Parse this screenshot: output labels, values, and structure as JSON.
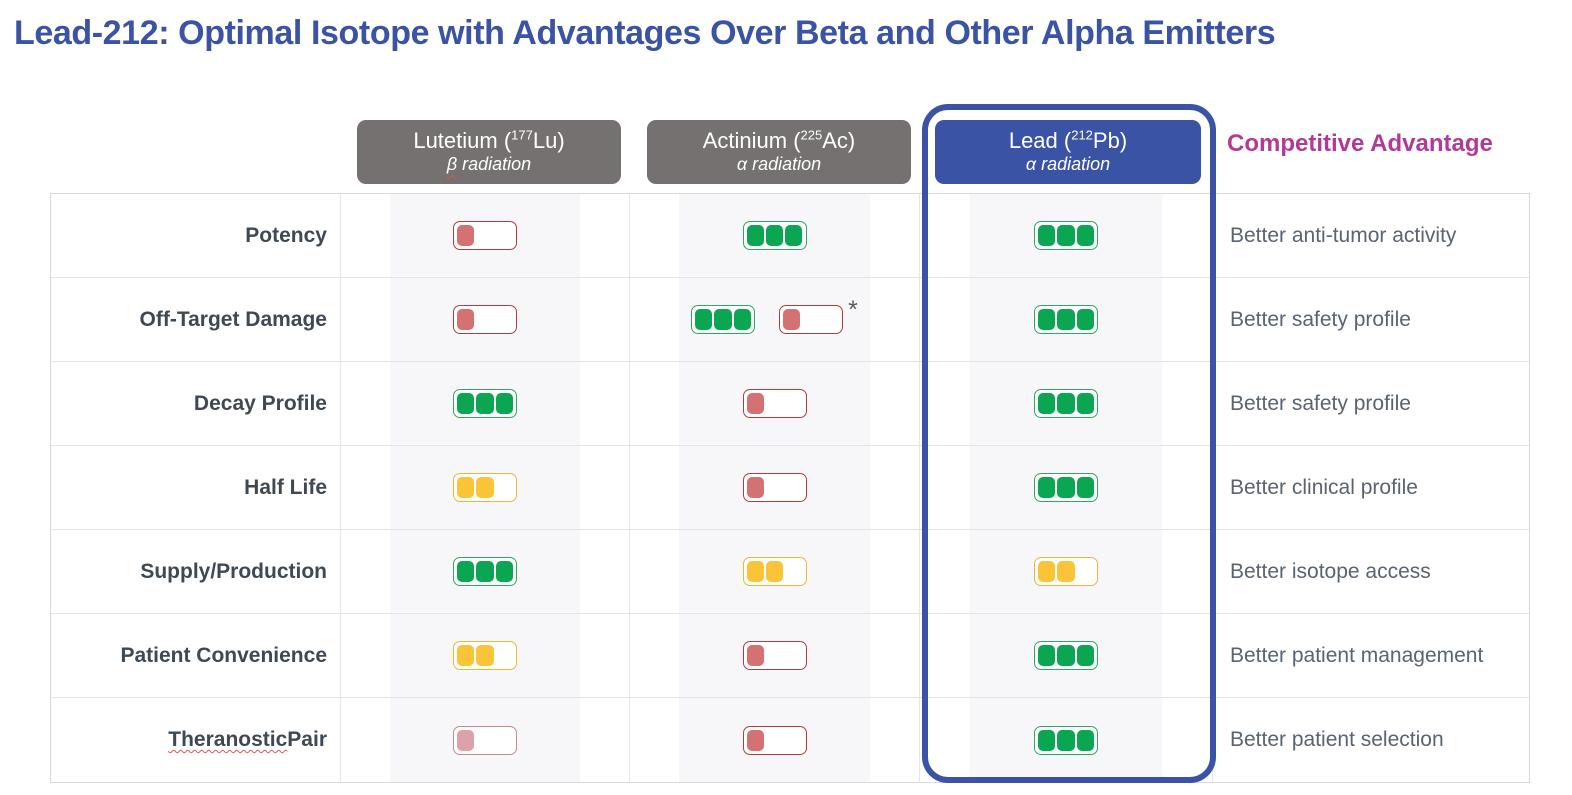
{
  "chart_data": {
    "type": "table",
    "title": "Lead-212: Optimal Isotope with Advantages Over Beta and Other Alpha Emitters",
    "advantage_header": "Competitive Advantage",
    "rating_scale_max": 3,
    "rating_legend": "filled blocks out of 3; green = favorable, yellow = moderate, red = unfavorable",
    "columns": [
      {
        "key": "lutetium",
        "display": "Lutetium (",
        "mass_number": "177",
        "element_close": "Lu)",
        "radiation": "β radiation",
        "radiation_wavy_prefix": "β",
        "theme": "gray",
        "highlighted": false
      },
      {
        "key": "actinium",
        "display": "Actinium (",
        "mass_number": "225",
        "element_close": "Ac)",
        "radiation": "α radiation",
        "theme": "gray",
        "highlighted": false
      },
      {
        "key": "lead",
        "display": "Lead (",
        "mass_number": "212",
        "element_close": "Pb)",
        "radiation": "α radiation",
        "theme": "blue",
        "highlighted": true
      }
    ],
    "rows": [
      {
        "category": "Potency",
        "cells": {
          "lutetium": [
            {
              "filled": 1,
              "color": "red"
            }
          ],
          "actinium": [
            {
              "filled": 3,
              "color": "green"
            }
          ],
          "lead": [
            {
              "filled": 3,
              "color": "green"
            }
          ]
        },
        "advantage": "Better anti-tumor activity"
      },
      {
        "category": "Off-Target Damage",
        "cells": {
          "lutetium": [
            {
              "filled": 1,
              "color": "red"
            }
          ],
          "actinium": [
            {
              "filled": 3,
              "color": "green"
            },
            {
              "filled": 1,
              "color": "red",
              "note": "*"
            }
          ],
          "lead": [
            {
              "filled": 3,
              "color": "green"
            }
          ]
        },
        "advantage": "Better safety profile"
      },
      {
        "category": "Decay Profile",
        "cells": {
          "lutetium": [
            {
              "filled": 3,
              "color": "green"
            }
          ],
          "actinium": [
            {
              "filled": 1,
              "color": "red"
            }
          ],
          "lead": [
            {
              "filled": 3,
              "color": "green"
            }
          ]
        },
        "advantage": "Better safety profile"
      },
      {
        "category": "Half Life",
        "cells": {
          "lutetium": [
            {
              "filled": 2,
              "color": "yellow"
            }
          ],
          "actinium": [
            {
              "filled": 1,
              "color": "red"
            }
          ],
          "lead": [
            {
              "filled": 3,
              "color": "green"
            }
          ]
        },
        "advantage": "Better clinical profile"
      },
      {
        "category": "Supply/Production",
        "cells": {
          "lutetium": [
            {
              "filled": 3,
              "color": "green"
            }
          ],
          "actinium": [
            {
              "filled": 2,
              "color": "yellow"
            }
          ],
          "lead": [
            {
              "filled": 2,
              "color": "yellow"
            }
          ]
        },
        "advantage": "Better isotope access"
      },
      {
        "category": "Patient Convenience",
        "cells": {
          "lutetium": [
            {
              "filled": 2,
              "color": "yellow"
            }
          ],
          "actinium": [
            {
              "filled": 1,
              "color": "red"
            }
          ],
          "lead": [
            {
              "filled": 3,
              "color": "green"
            }
          ]
        },
        "advantage": "Better patient management"
      },
      {
        "category": "Theranostic Pair",
        "category_wavy": "Theranostic",
        "cells": {
          "lutetium": [
            {
              "filled": 1,
              "color": "redfaded"
            }
          ],
          "actinium": [
            {
              "filled": 1,
              "color": "red"
            }
          ],
          "lead": [
            {
              "filled": 3,
              "color": "green"
            }
          ]
        },
        "advantage": "Better patient selection"
      }
    ],
    "footnote_marker": "*",
    "palette": {
      "title_blue": "#3A53A4",
      "header_gray": "#767171",
      "header_blue": "#3B53A5",
      "highlight_outline_blue": "#3B53A5",
      "advantage_magenta": "#B23A97",
      "rating_green": "#0BA652",
      "rating_yellow": "#F9C438",
      "rating_red": "#D47173",
      "rating_red_faded": "#DBA2AA",
      "row_label_color": "#3F4953",
      "advantage_text_color": "#5A6370"
    }
  }
}
